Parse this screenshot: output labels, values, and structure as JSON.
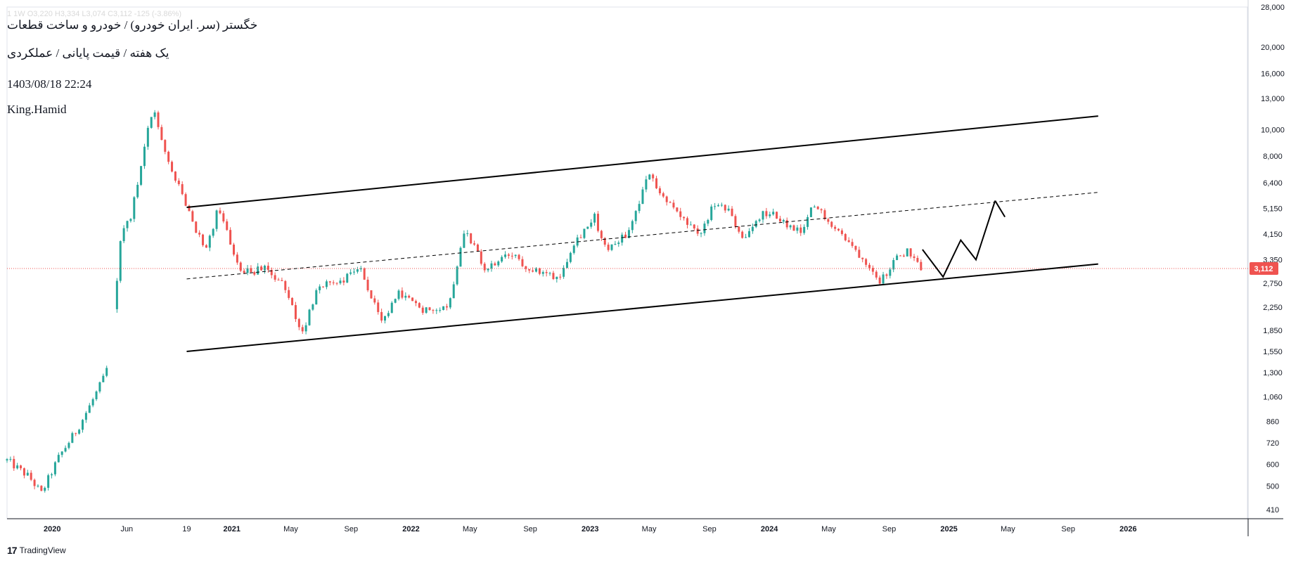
{
  "header": {
    "ohlc_line": "1  1W  O3,220 H3,334 L3,074 C3,112 -125 (-3.86%)",
    "symbol_line": "خگستر (سر. ایران خودرو) / خودرو و ساخت قطعات",
    "mode_line": "یک هفته / قیمت پایانی / عملکردی",
    "datetime": "1403/08/18 22:24",
    "author": "King.Hamid"
  },
  "footer": {
    "brand": "TradingView",
    "brand_icon": "tradingview-logo-icon"
  },
  "colors": {
    "up": "#26a69a",
    "down": "#ef5350",
    "price_line": "#ef5350",
    "trend": "#000000"
  },
  "chart_data": {
    "type": "candlestick",
    "y_scale": "log",
    "ylim": [
      380,
      28000
    ],
    "xlim": [
      "2019-10-01",
      "2026-09-01"
    ],
    "y_ticks": [
      410,
      500,
      600,
      720,
      860,
      1060,
      1300,
      1550,
      1850,
      2250,
      2750,
      3350,
      4150,
      5150,
      6400,
      8000,
      10000,
      13000,
      16000,
      20000,
      28000
    ],
    "y_tick_labels": [
      "410",
      "500",
      "600",
      "720",
      "860",
      "1,060",
      "1,300",
      "1,550",
      "1,850",
      "2,250",
      "2,750",
      "3,350",
      "4,150",
      "5,150",
      "6,400",
      "8,000",
      "10,000",
      "13,000",
      "16,000",
      "20,000",
      "28,000"
    ],
    "x_ticks": [
      {
        "date": "2020-01-01",
        "label": "2020",
        "major": true
      },
      {
        "date": "2020-06-01",
        "label": "Jun",
        "major": false
      },
      {
        "date": "2020-10-01",
        "label": "19",
        "major": false
      },
      {
        "date": "2021-01-01",
        "label": "2021",
        "major": true
      },
      {
        "date": "2021-05-01",
        "label": "May",
        "major": false
      },
      {
        "date": "2021-09-01",
        "label": "Sep",
        "major": false
      },
      {
        "date": "2022-01-01",
        "label": "2022",
        "major": true
      },
      {
        "date": "2022-05-01",
        "label": "May",
        "major": false
      },
      {
        "date": "2022-09-01",
        "label": "Sep",
        "major": false
      },
      {
        "date": "2023-01-01",
        "label": "2023",
        "major": true
      },
      {
        "date": "2023-05-01",
        "label": "May",
        "major": false
      },
      {
        "date": "2023-09-01",
        "label": "Sep",
        "major": false
      },
      {
        "date": "2024-01-01",
        "label": "2024",
        "major": true
      },
      {
        "date": "2024-05-01",
        "label": "May",
        "major": false
      },
      {
        "date": "2024-09-01",
        "label": "Sep",
        "major": false
      },
      {
        "date": "2025-01-01",
        "label": "2025",
        "major": true
      },
      {
        "date": "2025-05-01",
        "label": "May",
        "major": false
      },
      {
        "date": "2025-09-01",
        "label": "Sep",
        "major": false
      },
      {
        "date": "2026-01-01",
        "label": "2026",
        "major": true
      }
    ],
    "last_price": 3112,
    "last_price_label": "3,112",
    "anchors": [
      [
        "2019-10-01",
        620
      ],
      [
        "2019-11-15",
        540
      ],
      [
        "2019-12-10",
        470
      ],
      [
        "2020-01-15",
        640
      ],
      [
        "2020-02-20",
        800
      ],
      [
        "2020-03-20",
        1000
      ],
      [
        "2020-04-20",
        1290
      ],
      [
        "2020-05-10",
        2600
      ],
      [
        "2020-05-20",
        4100
      ],
      [
        "2020-06-10",
        4900
      ],
      [
        "2020-07-05",
        8200
      ],
      [
        "2020-07-25",
        12200
      ],
      [
        "2020-08-10",
        9000
      ],
      [
        "2020-09-05",
        6800
      ],
      [
        "2020-10-10",
        4700
      ],
      [
        "2020-11-10",
        3600
      ],
      [
        "2020-12-05",
        5200
      ],
      [
        "2021-01-20",
        3000
      ],
      [
        "2021-03-10",
        3100
      ],
      [
        "2021-04-15",
        2700
      ],
      [
        "2021-05-25",
        1800
      ],
      [
        "2021-06-25",
        2700
      ],
      [
        "2021-08-10",
        2800
      ],
      [
        "2021-09-20",
        3150
      ],
      [
        "2021-11-01",
        1950
      ],
      [
        "2021-12-10",
        2550
      ],
      [
        "2022-01-20",
        2200
      ],
      [
        "2022-03-20",
        2300
      ],
      [
        "2022-04-20",
        4400
      ],
      [
        "2022-06-01",
        3050
      ],
      [
        "2022-07-20",
        3500
      ],
      [
        "2022-09-15",
        3000
      ],
      [
        "2022-11-01",
        2900
      ],
      [
        "2022-11-25",
        3800
      ],
      [
        "2023-01-10",
        4800
      ],
      [
        "2023-02-01",
        3650
      ],
      [
        "2023-03-20",
        4200
      ],
      [
        "2023-05-05",
        7200
      ],
      [
        "2023-05-15",
        6200
      ],
      [
        "2023-06-25",
        5000
      ],
      [
        "2023-08-10",
        4050
      ],
      [
        "2023-09-10",
        5300
      ],
      [
        "2023-10-10",
        5000
      ],
      [
        "2023-11-10",
        3950
      ],
      [
        "2023-12-20",
        4950
      ],
      [
        "2024-01-20",
        4800
      ],
      [
        "2024-02-15",
        4300
      ],
      [
        "2024-03-10",
        4200
      ],
      [
        "2024-03-30",
        5300
      ],
      [
        "2024-05-01",
        4700
      ],
      [
        "2024-06-20",
        3700
      ],
      [
        "2024-07-25",
        3200
      ],
      [
        "2024-08-15",
        2800
      ],
      [
        "2024-09-10",
        3300
      ],
      [
        "2024-10-10",
        3650
      ],
      [
        "2024-11-08",
        3112
      ]
    ],
    "annotations": {
      "channel_upper": [
        [
          "2020-10-01",
          5200
        ],
        [
          "2025-11-01",
          11200
        ]
      ],
      "channel_lower": [
        [
          "2020-10-01",
          1550
        ],
        [
          "2025-11-01",
          3230
        ]
      ],
      "channel_mid_dashed": [
        [
          "2020-10-01",
          2850
        ],
        [
          "2025-11-01",
          5900
        ]
      ],
      "forecast_path": [
        [
          "2024-11-08",
          3650
        ],
        [
          "2024-12-20",
          2900
        ],
        [
          "2025-01-25",
          3950
        ],
        [
          "2025-02-25",
          3350
        ],
        [
          "2025-04-05",
          5500
        ]
      ],
      "forecast_arrow_tip": [
        [
          "2025-04-05",
          5500
        ],
        [
          "2025-04-25",
          4800
        ]
      ]
    }
  }
}
